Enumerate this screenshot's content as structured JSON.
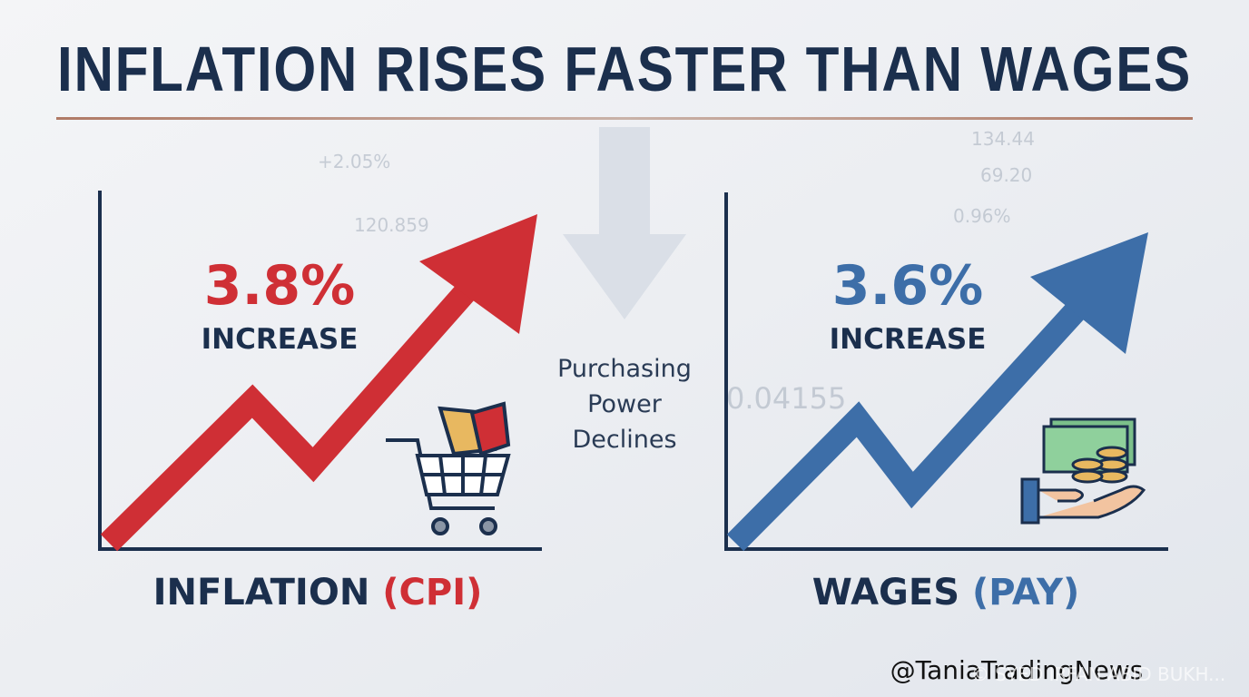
{
  "title": "INFLATION RISES FASTER THAN WAGES",
  "left_panel": {
    "value": "3.8%",
    "caption": "INCREASE",
    "label": "INFLATION",
    "label_tag": "(CPI)"
  },
  "middle": {
    "lines": [
      "Purchasing",
      "Power",
      "Declines"
    ]
  },
  "right_panel": {
    "value": "3.6%",
    "caption": "INCREASE",
    "label": "WAGES",
    "label_tag": "(PAY)"
  },
  "background_ticker": [
    "+2.05%",
    "134.44",
    "69.20",
    "0.96%",
    "120.859",
    "0.04155"
  ],
  "watermark": "@TaniaTradingNews",
  "credit": "© SYED IRFAN ABID BUKH..."
}
